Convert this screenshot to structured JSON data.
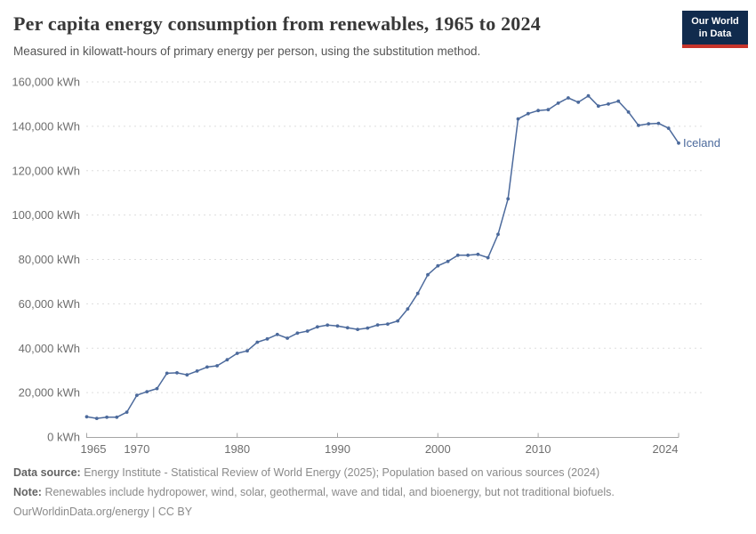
{
  "header": {
    "title": "Per capita energy consumption from renewables, 1965 to 2024",
    "subtitle": "Measured in kilowatt-hours of primary energy per person, using the substitution method.",
    "logo_line1": "Our World",
    "logo_line2": "in Data"
  },
  "chart_data": {
    "type": "line",
    "title": "Per capita energy consumption from renewables, 1965 to 2024",
    "xlabel": "",
    "ylabel": "kWh",
    "unit": "kWh",
    "xlim": [
      1965,
      2024
    ],
    "ylim": [
      0,
      160000
    ],
    "grid": "horizontal-dashed",
    "legend_position": "line-end-label",
    "xticks": [
      {
        "value": 1965,
        "label": "1965"
      },
      {
        "value": 1970,
        "label": "1970"
      },
      {
        "value": 1980,
        "label": "1980"
      },
      {
        "value": 1990,
        "label": "1990"
      },
      {
        "value": 2000,
        "label": "2000"
      },
      {
        "value": 2010,
        "label": "2010"
      },
      {
        "value": 2024,
        "label": "2024"
      }
    ],
    "yticks": [
      {
        "value": 0,
        "label": "0 kWh"
      },
      {
        "value": 20000,
        "label": "20,000 kWh"
      },
      {
        "value": 40000,
        "label": "40,000 kWh"
      },
      {
        "value": 60000,
        "label": "60,000 kWh"
      },
      {
        "value": 80000,
        "label": "80,000 kWh"
      },
      {
        "value": 100000,
        "label": "100,000 kWh"
      },
      {
        "value": 120000,
        "label": "120,000 kWh"
      },
      {
        "value": 140000,
        "label": "140,000 kWh"
      },
      {
        "value": 160000,
        "label": "160,000 kWh"
      }
    ],
    "series": [
      {
        "name": "Iceland",
        "color": "#4C6A9C",
        "x": [
          1965,
          1966,
          1967,
          1968,
          1969,
          1970,
          1971,
          1972,
          1973,
          1974,
          1975,
          1976,
          1977,
          1978,
          1979,
          1980,
          1981,
          1982,
          1983,
          1984,
          1985,
          1986,
          1987,
          1988,
          1989,
          1990,
          1991,
          1992,
          1993,
          1994,
          1995,
          1996,
          1997,
          1998,
          1999,
          2000,
          2001,
          2002,
          2003,
          2004,
          2005,
          2006,
          2007,
          2008,
          2009,
          2010,
          2011,
          2012,
          2013,
          2014,
          2015,
          2016,
          2017,
          2018,
          2019,
          2020,
          2021,
          2022,
          2023,
          2024
        ],
        "values": [
          9100,
          8400,
          8900,
          8900,
          11200,
          18800,
          20400,
          21800,
          28700,
          28900,
          28000,
          29700,
          31500,
          32100,
          34800,
          37700,
          38800,
          42700,
          44200,
          46200,
          44500,
          46800,
          47700,
          49600,
          50400,
          50000,
          49200,
          48500,
          49100,
          50500,
          50900,
          52300,
          57700,
          64700,
          73100,
          77100,
          79100,
          81900,
          81900,
          82300,
          80800,
          91300,
          107300,
          143300,
          145700,
          147100,
          147500,
          150400,
          152800,
          150800,
          153700,
          149100,
          150000,
          151300,
          146400,
          140400,
          141100,
          141300,
          139100,
          132400
        ]
      }
    ]
  },
  "colors": {
    "accent": "#4C6A9C",
    "logo_bg": "#112B4D",
    "logo_accent": "#C7342B",
    "grid": "#dddddd",
    "axis": "#a5a5a5",
    "tick_text": "#6e6e6e",
    "title_text": "#383838",
    "subtitle_text": "#555555",
    "footer_text": "#8a8a8a",
    "footer_label": "#636363"
  },
  "footer": {
    "data_source_label": "Data source:",
    "data_source_text": "Energy Institute - Statistical Review of World Energy (2025); Population based on various sources (2024)",
    "note_label": "Note:",
    "note_text": "Renewables include hydropower, wind, solar, geothermal, wave and tidal, and bioenergy, but not traditional biofuels.",
    "url": "OurWorldinData.org/energy",
    "separator": " | ",
    "license": "CC BY"
  }
}
